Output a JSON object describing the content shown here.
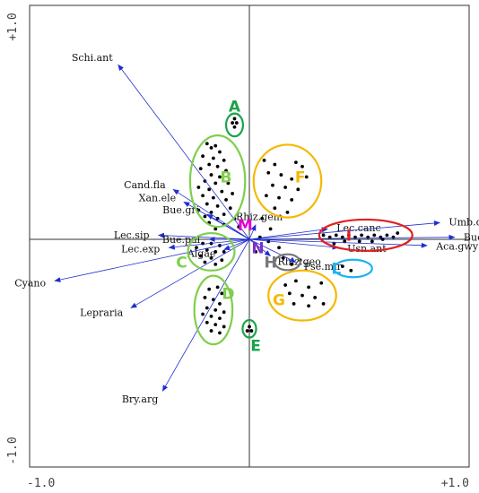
{
  "chart_data": {
    "type": "scatter",
    "title": "",
    "xlabel": "",
    "ylabel": "",
    "xlim": [
      -1.0,
      1.0
    ],
    "ylim": [
      -1.0,
      1.0
    ],
    "x_ticks": [
      "-1.0",
      "+1.0"
    ],
    "y_ticks": [
      "+1.0",
      "-1.0"
    ],
    "axes_through_origin": true,
    "arrow_color": "#1f2fd0",
    "point_color": "#000000",
    "vectors": [
      {
        "label": "Schi.ant",
        "x": -0.62,
        "y": 0.84
      },
      {
        "label": "Cand.fla",
        "x": -0.36,
        "y": 0.24
      },
      {
        "label": "Xan.ele",
        "x": -0.31,
        "y": 0.18
      },
      {
        "label": "Bue.gri",
        "x": -0.2,
        "y": 0.12
      },
      {
        "label": "Lec.sip",
        "x": -0.43,
        "y": 0.02
      },
      {
        "label": "Bue.pal",
        "x": -0.19,
        "y": 0.0
      },
      {
        "label": "Lec.exp",
        "x": -0.38,
        "y": -0.04
      },
      {
        "label": "Algae",
        "x": -0.12,
        "y": -0.05
      },
      {
        "label": "Cyano",
        "x": -0.92,
        "y": -0.2
      },
      {
        "label": "Lepraria",
        "x": -0.56,
        "y": -0.33
      },
      {
        "label": "Bry.arg",
        "x": -0.41,
        "y": -0.73
      },
      {
        "label": "Rhiz.gem",
        "x": 0.03,
        "y": 0.07
      },
      {
        "label": "Rhiz.geo",
        "x": 0.1,
        "y": -0.08
      },
      {
        "label": "Pse.mir",
        "x": 0.22,
        "y": -0.11
      },
      {
        "label": "Usn.ant",
        "x": 0.42,
        "y": -0.04
      },
      {
        "label": "Lec.canc",
        "x": 0.37,
        "y": 0.05
      },
      {
        "label": "Umb.dec",
        "x": 0.9,
        "y": 0.08
      },
      {
        "label": "Bue.fri",
        "x": 0.97,
        "y": 0.01
      },
      {
        "label": "Aca.gwy",
        "x": 0.84,
        "y": -0.03
      }
    ],
    "groups": [
      {
        "label": "A",
        "color": "#1aa34a",
        "cx": -0.07,
        "cy": 0.55,
        "rx": 0.04,
        "ry": 0.055,
        "label_x": -0.07,
        "label_y": 0.64
      },
      {
        "label": "B",
        "color": "#7fcf4b",
        "cx": -0.15,
        "cy": 0.28,
        "rx": 0.13,
        "ry": 0.22,
        "label_x": -0.11,
        "label_y": 0.3
      },
      {
        "label": "C",
        "color": "#7fcf4b",
        "cx": -0.18,
        "cy": -0.06,
        "rx": 0.11,
        "ry": 0.09,
        "label_x": -0.32,
        "label_y": -0.11
      },
      {
        "label": "D",
        "color": "#7fcf4b",
        "cx": -0.17,
        "cy": -0.34,
        "rx": 0.09,
        "ry": 0.165,
        "label_x": -0.1,
        "label_y": -0.26
      },
      {
        "label": "E",
        "color": "#1aa34a",
        "cx": 0.0,
        "cy": -0.43,
        "rx": 0.032,
        "ry": 0.042,
        "label_x": 0.03,
        "label_y": -0.51
      },
      {
        "label": "F",
        "color": "#f5b800",
        "cx": 0.18,
        "cy": 0.28,
        "rx": 0.16,
        "ry": 0.175,
        "label_x": 0.24,
        "label_y": 0.3
      },
      {
        "label": "G",
        "color": "#f5b800",
        "cx": 0.25,
        "cy": -0.27,
        "rx": 0.16,
        "ry": 0.12,
        "label_x": 0.14,
        "label_y": -0.29
      },
      {
        "label": "H",
        "color": "#777777",
        "cx": 0.18,
        "cy": -0.11,
        "rx": 0.06,
        "ry": 0.038,
        "label_x": 0.1,
        "label_y": -0.11
      },
      {
        "label": "I",
        "color": "#e02020",
        "cx": 0.55,
        "cy": 0.02,
        "rx": 0.22,
        "ry": 0.075,
        "label_x": 0.47,
        "label_y": 0.02
      },
      {
        "label": "L",
        "color": "#1eb2f0",
        "cx": 0.49,
        "cy": -0.14,
        "rx": 0.09,
        "ry": 0.042,
        "label_x": 0.41,
        "label_y": -0.14
      },
      {
        "label": "M",
        "color": "#e000d0",
        "cx": 0.01,
        "cy": 0.04,
        "rx": 0.0,
        "ry": 0.0,
        "label_x": -0.02,
        "label_y": 0.07
      },
      {
        "label": "N",
        "color": "#7a30c8",
        "cx": 0.04,
        "cy": -0.04,
        "rx": 0.0,
        "ry": 0.0,
        "label_x": 0.04,
        "label_y": -0.04
      }
    ],
    "points": [
      [
        -0.07,
        0.58
      ],
      [
        -0.08,
        0.56
      ],
      [
        -0.06,
        0.56
      ],
      [
        -0.07,
        0.54
      ],
      [
        -0.2,
        0.46
      ],
      [
        -0.18,
        0.44
      ],
      [
        -0.16,
        0.45
      ],
      [
        -0.14,
        0.42
      ],
      [
        -0.22,
        0.4
      ],
      [
        -0.17,
        0.39
      ],
      [
        -0.12,
        0.38
      ],
      [
        -0.19,
        0.36
      ],
      [
        -0.15,
        0.35
      ],
      [
        -0.23,
        0.34
      ],
      [
        -0.11,
        0.33
      ],
      [
        -0.18,
        0.31
      ],
      [
        -0.14,
        0.3
      ],
      [
        -0.21,
        0.28
      ],
      [
        -0.16,
        0.27
      ],
      [
        -0.1,
        0.27
      ],
      [
        -0.24,
        0.25
      ],
      [
        -0.19,
        0.24
      ],
      [
        -0.13,
        0.23
      ],
      [
        -0.08,
        0.22
      ],
      [
        -0.22,
        0.21
      ],
      [
        -0.17,
        0.2
      ],
      [
        -0.11,
        0.19
      ],
      [
        -0.2,
        0.17
      ],
      [
        -0.15,
        0.16
      ],
      [
        -0.09,
        0.15
      ],
      [
        -0.24,
        0.14
      ],
      [
        -0.18,
        0.13
      ],
      [
        -0.12,
        0.12
      ],
      [
        -0.21,
        0.11
      ],
      [
        -0.15,
        0.1
      ],
      [
        -0.07,
        0.1
      ],
      [
        -0.19,
        0.08
      ],
      [
        -0.12,
        0.07
      ],
      [
        -0.05,
        0.06
      ],
      [
        -0.16,
        0.05
      ],
      [
        -0.22,
        -0.02
      ],
      [
        -0.18,
        -0.02
      ],
      [
        -0.14,
        -0.03
      ],
      [
        -0.25,
        -0.04
      ],
      [
        -0.2,
        -0.05
      ],
      [
        -0.16,
        -0.06
      ],
      [
        -0.12,
        -0.06
      ],
      [
        -0.23,
        -0.08
      ],
      [
        -0.18,
        -0.09
      ],
      [
        -0.13,
        -0.1
      ],
      [
        -0.21,
        -0.11
      ],
      [
        -0.16,
        -0.12
      ],
      [
        -0.19,
        -0.24
      ],
      [
        -0.15,
        -0.23
      ],
      [
        -0.13,
        -0.26
      ],
      [
        -0.21,
        -0.28
      ],
      [
        -0.17,
        -0.29
      ],
      [
        -0.14,
        -0.31
      ],
      [
        -0.2,
        -0.33
      ],
      [
        -0.16,
        -0.34
      ],
      [
        -0.12,
        -0.35
      ],
      [
        -0.22,
        -0.36
      ],
      [
        -0.18,
        -0.37
      ],
      [
        -0.14,
        -0.38
      ],
      [
        -0.2,
        -0.4
      ],
      [
        -0.16,
        -0.41
      ],
      [
        -0.12,
        -0.42
      ],
      [
        -0.18,
        -0.44
      ],
      [
        -0.14,
        -0.45
      ],
      [
        0.0,
        -0.42
      ],
      [
        -0.01,
        -0.44
      ],
      [
        0.01,
        -0.44
      ],
      [
        0.07,
        0.38
      ],
      [
        0.12,
        0.36
      ],
      [
        0.22,
        0.37
      ],
      [
        0.25,
        0.35
      ],
      [
        0.09,
        0.32
      ],
      [
        0.15,
        0.31
      ],
      [
        0.2,
        0.29
      ],
      [
        0.27,
        0.3
      ],
      [
        0.11,
        0.26
      ],
      [
        0.17,
        0.25
      ],
      [
        0.23,
        0.24
      ],
      [
        0.08,
        0.21
      ],
      [
        0.14,
        0.2
      ],
      [
        0.2,
        0.19
      ],
      [
        0.12,
        0.15
      ],
      [
        0.18,
        0.13
      ],
      [
        0.06,
        0.1
      ],
      [
        0.1,
        0.05
      ],
      [
        0.05,
        0.01
      ],
      [
        0.09,
        -0.01
      ],
      [
        0.03,
        -0.06
      ],
      [
        0.14,
        -0.04
      ],
      [
        0.12,
        -0.1
      ],
      [
        0.16,
        -0.09
      ],
      [
        0.2,
        -0.12
      ],
      [
        0.24,
        -0.1
      ],
      [
        0.17,
        -0.22
      ],
      [
        0.22,
        -0.2
      ],
      [
        0.28,
        -0.23
      ],
      [
        0.34,
        -0.21
      ],
      [
        0.19,
        -0.26
      ],
      [
        0.25,
        -0.27
      ],
      [
        0.31,
        -0.28
      ],
      [
        0.21,
        -0.31
      ],
      [
        0.28,
        -0.32
      ],
      [
        0.35,
        -0.31
      ],
      [
        0.35,
        0.02
      ],
      [
        0.38,
        0.01
      ],
      [
        0.41,
        0.02
      ],
      [
        0.44,
        0.01
      ],
      [
        0.47,
        0.02
      ],
      [
        0.5,
        0.01
      ],
      [
        0.53,
        0.02
      ],
      [
        0.56,
        0.01
      ],
      [
        0.59,
        0.02
      ],
      [
        0.62,
        0.01
      ],
      [
        0.65,
        0.02
      ],
      [
        0.68,
        0.01
      ],
      [
        0.45,
        -0.01
      ],
      [
        0.52,
        -0.01
      ],
      [
        0.58,
        -0.01
      ],
      [
        0.63,
        0.0
      ],
      [
        0.4,
        -0.02
      ],
      [
        0.7,
        0.03
      ],
      [
        0.44,
        -0.13
      ],
      [
        0.48,
        -0.15
      ]
    ]
  }
}
